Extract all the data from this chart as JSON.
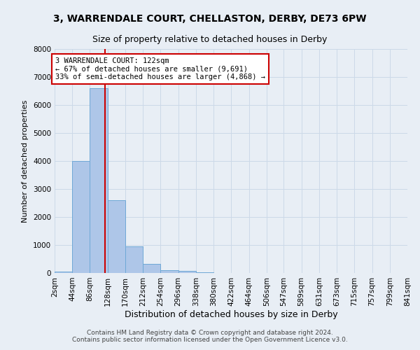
{
  "title": "3, WARRENDALE COURT, CHELLASTON, DERBY, DE73 6PW",
  "subtitle": "Size of property relative to detached houses in Derby",
  "xlabel": "Distribution of detached houses by size in Derby",
  "ylabel": "Number of detached properties",
  "bin_labels": [
    "2sqm",
    "44sqm",
    "86sqm",
    "128sqm",
    "170sqm",
    "212sqm",
    "254sqm",
    "296sqm",
    "338sqm",
    "380sqm",
    "422sqm",
    "464sqm",
    "506sqm",
    "547sqm",
    "589sqm",
    "631sqm",
    "673sqm",
    "715sqm",
    "757sqm",
    "799sqm",
    "841sqm"
  ],
  "bin_edges": [
    2,
    44,
    86,
    128,
    170,
    212,
    254,
    296,
    338,
    380,
    422,
    464,
    506,
    547,
    589,
    631,
    673,
    715,
    757,
    799,
    841
  ],
  "bar_heights": [
    60,
    4000,
    6600,
    2600,
    950,
    330,
    110,
    75,
    30,
    0,
    0,
    0,
    0,
    0,
    0,
    0,
    0,
    0,
    0,
    0
  ],
  "bar_color": "#aec6e8",
  "bar_edge_color": "#6fa8d6",
  "grid_color": "#ccd9e8",
  "background_color": "#e8eef5",
  "property_size": 122,
  "vline_color": "#cc0000",
  "annotation_text": "3 WARRENDALE COURT: 122sqm\n← 67% of detached houses are smaller (9,691)\n33% of semi-detached houses are larger (4,868) →",
  "annotation_box_color": "#ffffff",
  "annotation_box_edge": "#cc0000",
  "footer_text": "Contains HM Land Registry data © Crown copyright and database right 2024.\nContains public sector information licensed under the Open Government Licence v3.0.",
  "ylim": [
    0,
    8000
  ],
  "yticks": [
    0,
    1000,
    2000,
    3000,
    4000,
    5000,
    6000,
    7000,
    8000
  ],
  "title_fontsize": 10,
  "subtitle_fontsize": 9,
  "xlabel_fontsize": 9,
  "ylabel_fontsize": 8,
  "tick_fontsize": 7.5,
  "annotation_fontsize": 7.5,
  "footer_fontsize": 6.5
}
